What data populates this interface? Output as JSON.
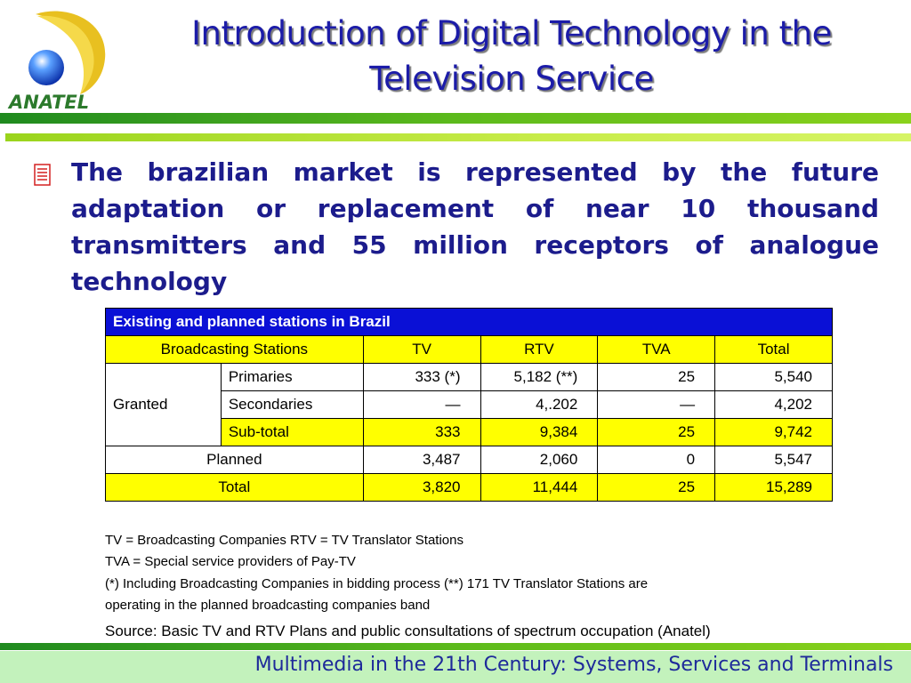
{
  "logo": {
    "text": "ANATEL"
  },
  "header": {
    "title_line1": "Introduction of Digital Technology in the",
    "title_line2": "Television Service"
  },
  "bullet": {
    "icon": "document-icon",
    "text": "The brazilian market is represented by the future adaptation or replacement of  near 10 thousand transmitters and 55 million receptors of analogue technology"
  },
  "table": {
    "caption": "Existing and planned stations in Brazil",
    "headers": [
      "Broadcasting Stations",
      "TV",
      "RTV",
      "TVA",
      "Total"
    ],
    "granted_label": "Granted",
    "rows": [
      {
        "label": "Primaries",
        "values": [
          "333 (*)",
          "5,182 (**)",
          "25",
          "5,540"
        ]
      },
      {
        "label": "Secondaries",
        "values": [
          "—",
          "4,.202",
          "—",
          "4,202"
        ]
      },
      {
        "label": "Sub-total",
        "values": [
          "333",
          "9,384",
          "25",
          "9,742"
        ]
      },
      {
        "label": "Planned",
        "values": [
          "3,487",
          "2,060",
          "0",
          "5,547"
        ]
      },
      {
        "label": "Total",
        "values": [
          "3,820",
          "11,444",
          "25",
          "15,289"
        ]
      }
    ]
  },
  "notes": [
    "TV = Broadcasting Companies RTV = TV Translator Stations",
    "TVA = Special service providers of  Pay-TV",
    "(*) Including Broadcasting Companies in bidding process (**) 171 TV Translator Stations are",
    "operating in the  planned broadcasting companies band"
  ],
  "source": "Source: Basic TV and RTV Plans and public consultations of spectrum occupation (Anatel)",
  "footer": {
    "text": "Multimedia in the 21th Century: Systems, Services and Terminals"
  },
  "colors": {
    "title": "#1c1ca8",
    "caption_bg": "#0a10d6",
    "highlight": "#ffff00",
    "footer_bg": "#c3f2bc",
    "rule_green": "#5cba1c"
  }
}
